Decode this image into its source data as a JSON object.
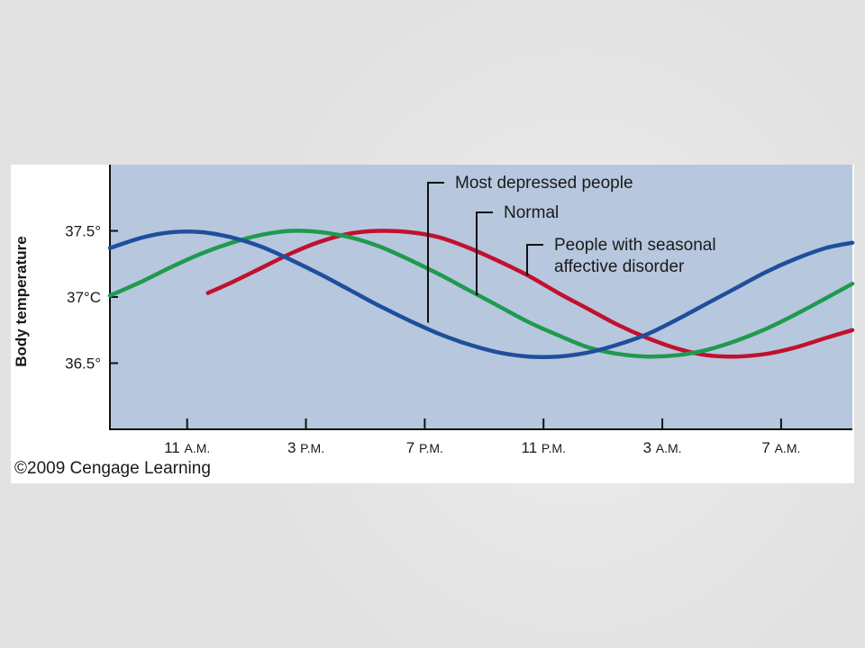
{
  "chart_data": {
    "type": "line",
    "title": "",
    "xlabel": "",
    "ylabel": "Body temperature",
    "x_ticks": [
      {
        "main": "11",
        "suffix": "A.M."
      },
      {
        "main": "3",
        "suffix": "P.M."
      },
      {
        "main": "7",
        "suffix": "P.M."
      },
      {
        "main": "11",
        "suffix": "P.M."
      },
      {
        "main": "3",
        "suffix": "A.M."
      },
      {
        "main": "7",
        "suffix": "A.M."
      }
    ],
    "x_tick_hours": [
      11,
      15,
      19,
      23,
      27,
      31
    ],
    "x_range": [
      8.4,
      33.4
    ],
    "y_ticks": [
      {
        "value": 37.5,
        "label": "37.5°"
      },
      {
        "value": 37.0,
        "label": "37°C"
      },
      {
        "value": 36.5,
        "label": "36.5°"
      }
    ],
    "y_range": [
      36.0,
      38.0
    ],
    "grid": false,
    "series": [
      {
        "name": "Most depressed people",
        "color": "#1f4e9c",
        "x": [
          8.4,
          9.5,
          10.5,
          11.5,
          12.5,
          13.5,
          14.5,
          15.5,
          16.5,
          17.5,
          18.5,
          19.5,
          20.5,
          21.5,
          22.5,
          23.5,
          24.5,
          25.5,
          26.5,
          27.5,
          28.5,
          29.5,
          30.5,
          31.5,
          32.5,
          33.4
        ],
        "values": [
          37.37,
          37.45,
          37.49,
          37.49,
          37.45,
          37.38,
          37.28,
          37.17,
          37.05,
          36.93,
          36.82,
          36.72,
          36.64,
          36.58,
          36.55,
          36.55,
          36.58,
          36.64,
          36.72,
          36.83,
          36.95,
          37.07,
          37.19,
          37.29,
          37.37,
          37.41
        ]
      },
      {
        "name": "Normal",
        "color": "#1f9a4e",
        "x": [
          8.4,
          9.5,
          10.5,
          11.5,
          12.5,
          13.5,
          14.5,
          15.5,
          16.5,
          17.5,
          18.5,
          19.5,
          20.5,
          21.5,
          22.5,
          23.5,
          24.5,
          25.5,
          26.5,
          27.5,
          28.5,
          29.5,
          30.5,
          31.5,
          32.5,
          33.4
        ],
        "values": [
          37.01,
          37.12,
          37.23,
          37.33,
          37.41,
          37.47,
          37.5,
          37.49,
          37.45,
          37.38,
          37.28,
          37.17,
          37.05,
          36.93,
          36.81,
          36.71,
          36.62,
          36.57,
          36.55,
          36.56,
          36.6,
          36.67,
          36.76,
          36.87,
          36.99,
          37.1
        ]
      },
      {
        "name": "People with seasonal affective disorder",
        "color": "#c0112e",
        "x": [
          11.7,
          12.5,
          13.5,
          14.5,
          15.5,
          16.5,
          17.5,
          18.5,
          19.5,
          20.5,
          21.5,
          22.5,
          23.5,
          24.5,
          25.5,
          26.5,
          27.5,
          28.5,
          29.5,
          30.5,
          31.5,
          32.5,
          33.4
        ],
        "values": [
          37.03,
          37.11,
          37.22,
          37.33,
          37.42,
          37.48,
          37.5,
          37.49,
          37.45,
          37.37,
          37.27,
          37.16,
          37.03,
          36.91,
          36.79,
          36.69,
          36.61,
          36.56,
          36.55,
          36.57,
          36.62,
          36.69,
          36.75
        ]
      }
    ],
    "annotations": [
      {
        "series": 0,
        "lines": [
          "Most depressed people"
        ],
        "at_x": 19.1,
        "at_y": 36.81
      },
      {
        "series": 1,
        "lines": [
          "Normal"
        ],
        "at_x": 20.8,
        "at_y": 37.02
      },
      {
        "series": 2,
        "lines": [
          "People with seasonal",
          "affective disorder"
        ],
        "at_x": 22.5,
        "at_y": 37.17
      }
    ]
  },
  "copyright": "©2009 Cengage Learning"
}
